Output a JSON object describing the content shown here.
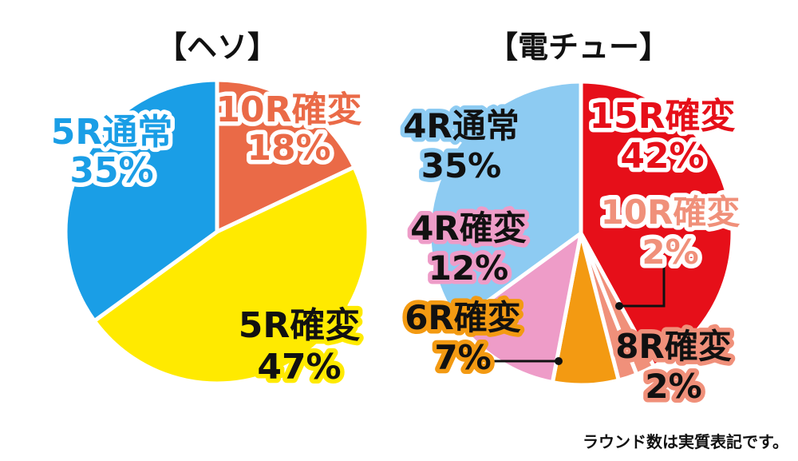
{
  "note": "ラウンド数は実質表記です。",
  "colors": {
    "blue": "#1a9ee6",
    "orange_red": "#ea6a47",
    "yellow": "#ffea00",
    "red": "#e60f19",
    "salmon": "#f0907a",
    "orange": "#f39a12",
    "pink": "#ee9cc8",
    "light_blue": "#8dcbf2"
  },
  "chart_data": [
    {
      "type": "pie",
      "title": "【ヘソ】",
      "slices": [
        {
          "label": "10R確変",
          "value": 18,
          "display": "18%"
        },
        {
          "label": "5R確変",
          "value": 47,
          "display": "47%"
        },
        {
          "label": "5R通常",
          "value": 35,
          "display": "35%"
        }
      ],
      "start": "top",
      "direction": "clockwise"
    },
    {
      "type": "pie",
      "title": "【電チュー】",
      "slices": [
        {
          "label": "15R確変",
          "value": 42,
          "display": "42%"
        },
        {
          "label": "10R確変",
          "value": 2,
          "display": "2%"
        },
        {
          "label": "8R確変",
          "value": 2,
          "display": "2%"
        },
        {
          "label": "6R確変",
          "value": 7,
          "display": "7%"
        },
        {
          "label": "4R確変",
          "value": 12,
          "display": "12%"
        },
        {
          "label": "4R通常",
          "value": 35,
          "display": "35%"
        }
      ],
      "start": "top",
      "direction": "clockwise"
    }
  ]
}
